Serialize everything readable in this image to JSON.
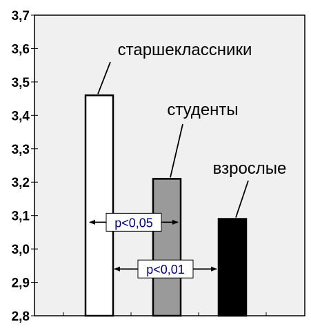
{
  "chart_data": {
    "type": "bar",
    "categories": [
      "старшеклассники",
      "студенты",
      "взрослые"
    ],
    "values": [
      3.46,
      3.21,
      3.09
    ],
    "bar_colors": [
      "#ffffff",
      "#9a9a9a",
      "#000000"
    ],
    "ylim": [
      2.8,
      3.7
    ],
    "yticks": [
      "2,8",
      "2,9",
      "3,0",
      "3,1",
      "3,2",
      "3,3",
      "3,4",
      "3,5",
      "3,6",
      "3,7"
    ],
    "xlabel": "",
    "ylabel": "",
    "title": "",
    "grid": false,
    "plot_background": "#f0f0f0",
    "annotations": [
      {
        "text": "p<0,05",
        "between": [
          0,
          1
        ],
        "y": 3.08
      },
      {
        "text": "p<0,01",
        "between": [
          0,
          2
        ],
        "y": 2.94
      }
    ]
  }
}
